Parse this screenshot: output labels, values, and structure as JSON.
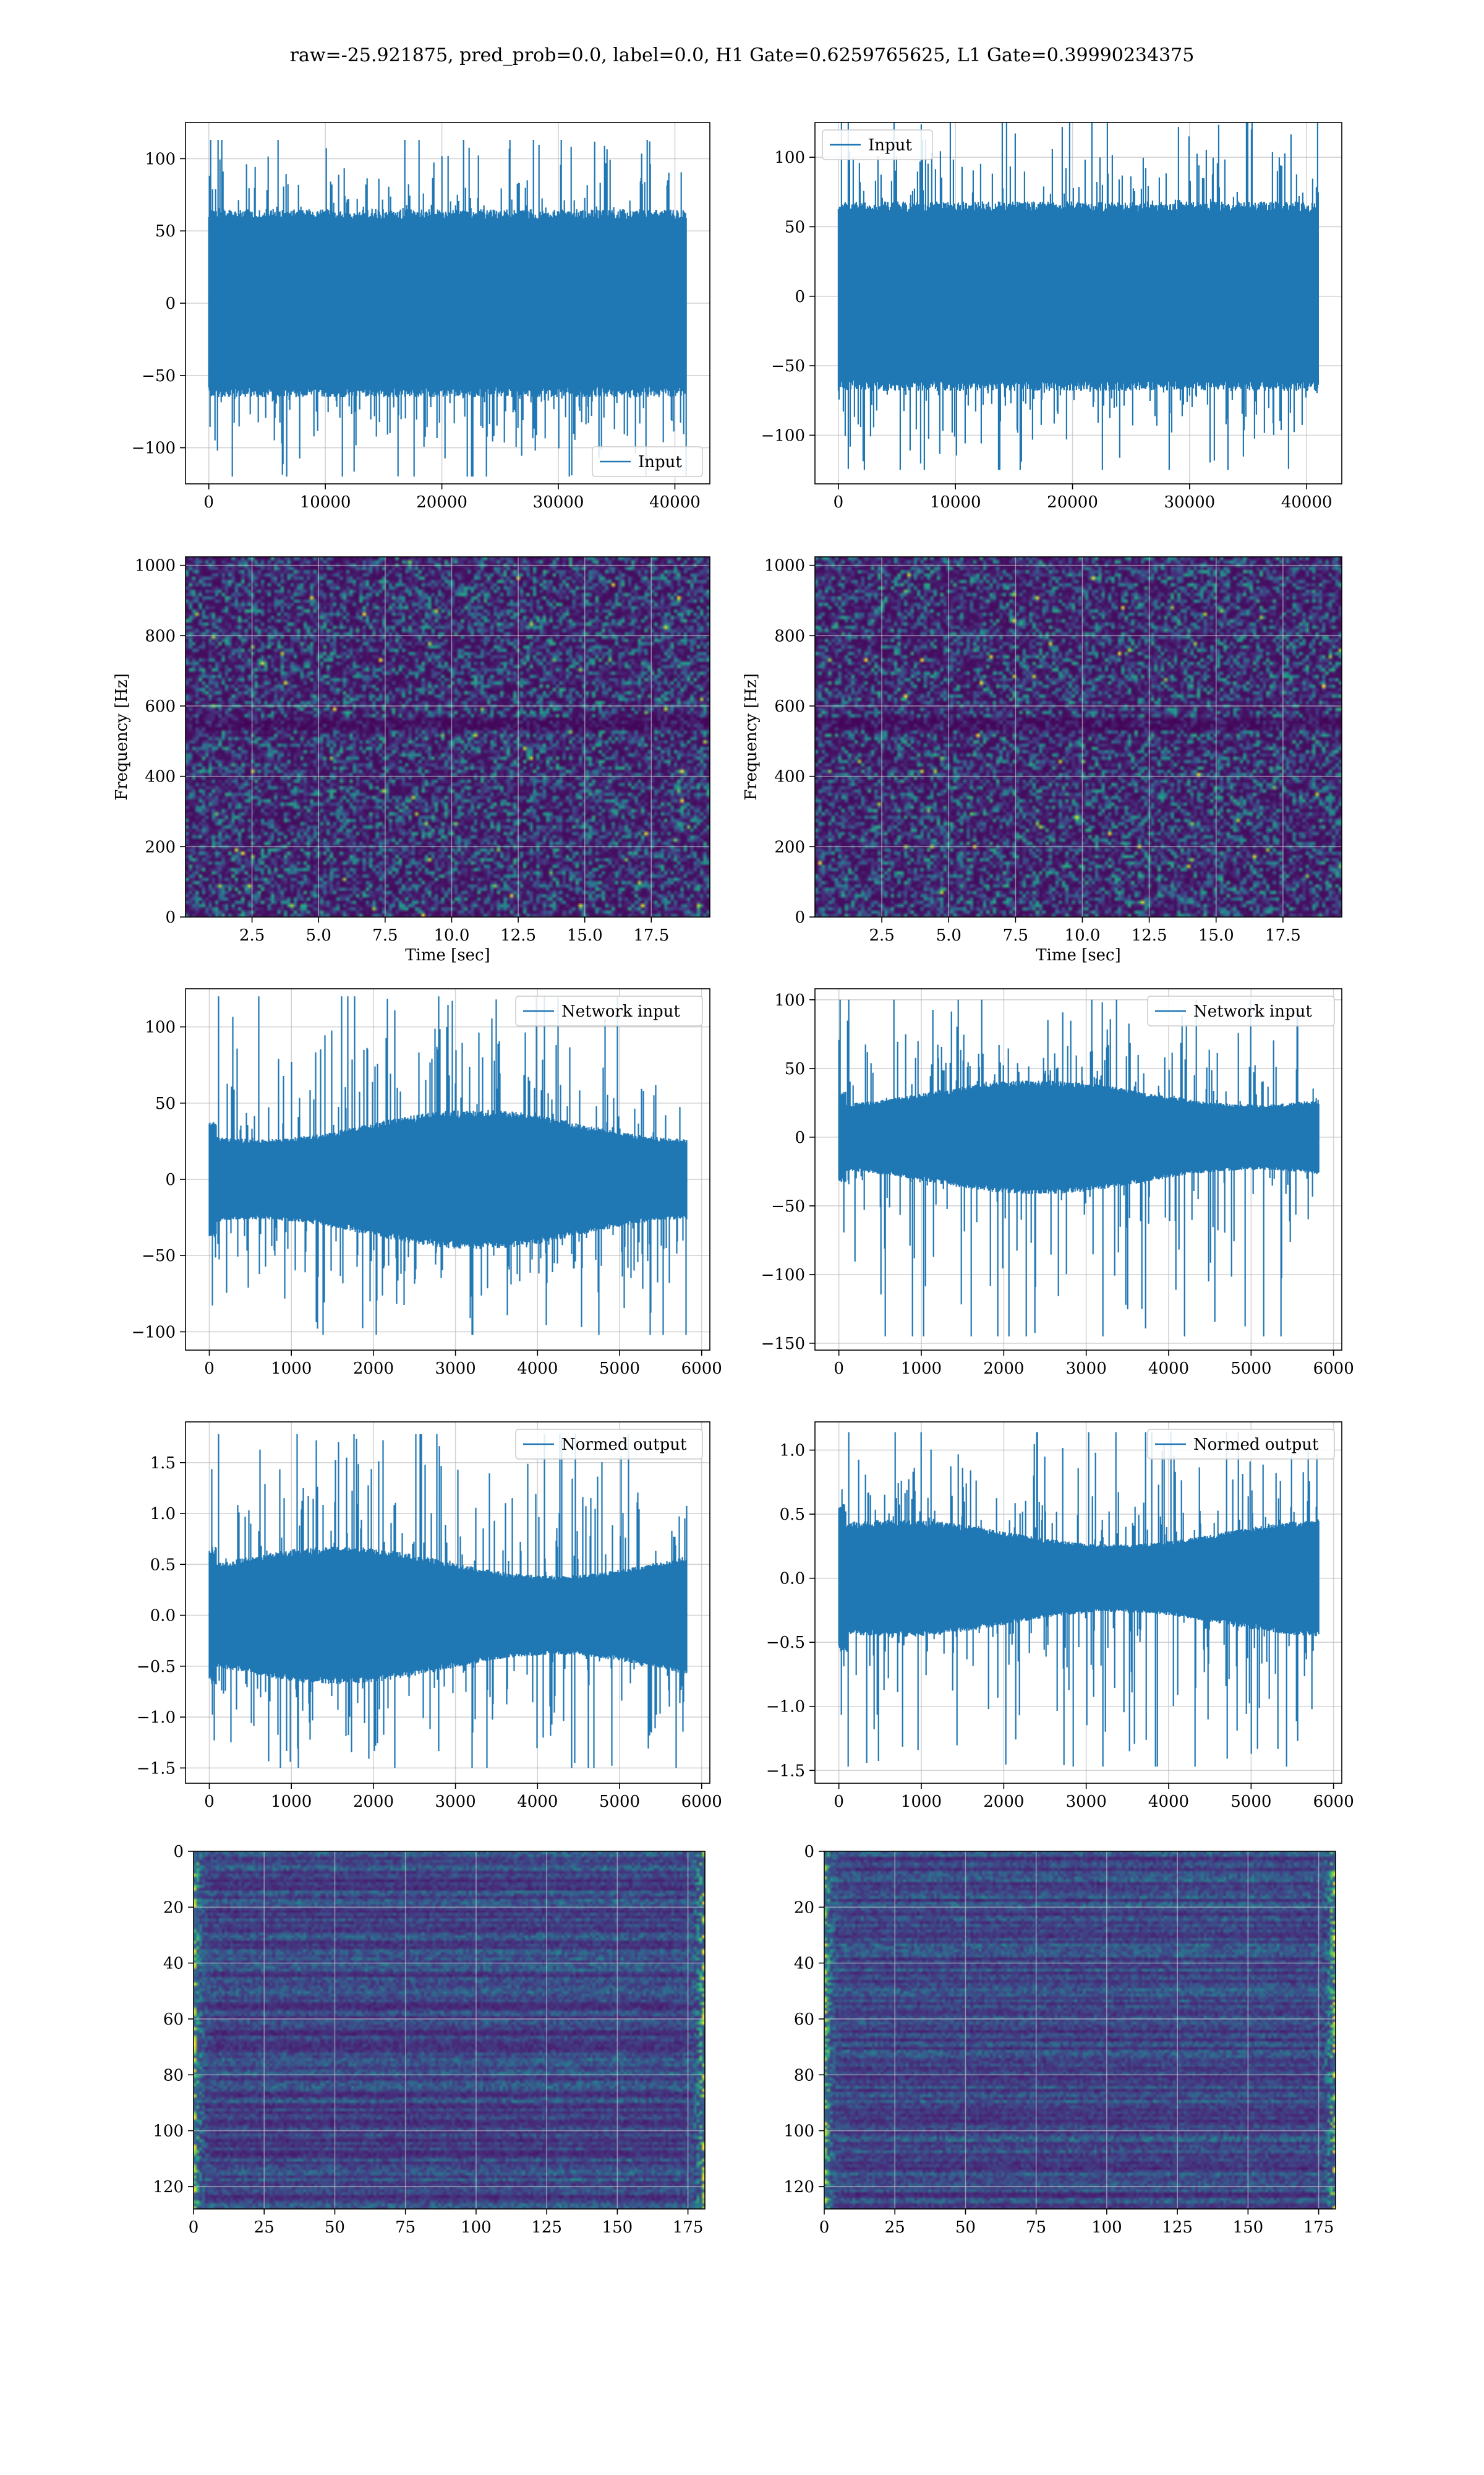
{
  "figure": {
    "title": "raw=-25.921875, pred_prob=0.0, label=0.0, H1 Gate=0.6259765625, L1 Gate=0.39990234375"
  },
  "colors": {
    "line": "#1f77b4",
    "grid": "#b0b0b0",
    "spec_low": "#440154",
    "spec_mid": "#21918c",
    "spec_high": "#fde725"
  },
  "chart_data": [
    {
      "id": "raw_h1",
      "type": "line",
      "legend": "Input",
      "legend_loc": "lower right",
      "xlim": [
        -2000,
        43000
      ],
      "ylim": [
        -125,
        125
      ],
      "xticks": [
        0,
        10000,
        20000,
        30000,
        40000
      ],
      "yticks": [
        -100,
        -50,
        0,
        50,
        100
      ],
      "signal": {
        "n": 40960,
        "x_end": 40960,
        "band": 62,
        "max": 113,
        "min": -120,
        "shape": "flat"
      },
      "grid": true
    },
    {
      "id": "raw_l1",
      "type": "line",
      "legend": "Input",
      "legend_loc": "upper left",
      "xlim": [
        -2000,
        43000
      ],
      "ylim": [
        -135,
        125
      ],
      "xticks": [
        0,
        10000,
        20000,
        30000,
        40000
      ],
      "yticks": [
        -100,
        -50,
        0,
        50,
        100
      ],
      "signal": {
        "n": 40960,
        "x_end": 40960,
        "band": 65,
        "max": 125,
        "min": -125,
        "shape": "flat"
      },
      "grid": true
    },
    {
      "id": "spec_h1",
      "type": "heatmap",
      "xlabel": "Time [sec]",
      "ylabel": "Frequency [Hz]",
      "xlim": [
        0,
        19.7
      ],
      "ylim": [
        0,
        1024
      ],
      "xticks": [
        2.5,
        5.0,
        7.5,
        10.0,
        12.5,
        15.0,
        17.5
      ],
      "yticks": [
        0,
        200,
        400,
        600,
        800,
        1000
      ],
      "grid": true
    },
    {
      "id": "spec_l1",
      "type": "heatmap",
      "xlabel": "Time [sec]",
      "ylabel": "Frequency [Hz]",
      "xlim": [
        0,
        19.7
      ],
      "ylim": [
        0,
        1024
      ],
      "xticks": [
        2.5,
        5.0,
        7.5,
        10.0,
        12.5,
        15.0,
        17.5
      ],
      "yticks": [
        0,
        200,
        400,
        600,
        800,
        1000
      ],
      "grid": true
    },
    {
      "id": "net_h1",
      "type": "line",
      "legend": "Network input",
      "legend_loc": "upper right",
      "xlim": [
        -290,
        6100
      ],
      "ylim": [
        -112,
        125
      ],
      "xticks": [
        0,
        1000,
        2000,
        3000,
        4000,
        5000,
        6000
      ],
      "yticks": [
        -100,
        -50,
        0,
        50,
        100
      ],
      "signal": {
        "n": 5820,
        "x_end": 5820,
        "band": 42,
        "max": 120,
        "min": -102,
        "shape": "taper"
      },
      "grid": true
    },
    {
      "id": "net_l1",
      "type": "line",
      "legend": "Network input",
      "legend_loc": "upper right",
      "xlim": [
        -290,
        6100
      ],
      "ylim": [
        -155,
        108
      ],
      "xticks": [
        0,
        1000,
        2000,
        3000,
        4000,
        5000,
        6000
      ],
      "yticks": [
        -150,
        -100,
        -50,
        0,
        50,
        100
      ],
      "signal": {
        "n": 5820,
        "x_end": 5820,
        "band": 38,
        "max": 100,
        "min": -145,
        "shape": "taper"
      },
      "grid": true
    },
    {
      "id": "norm_h1",
      "type": "line",
      "legend": "Normed output",
      "legend_loc": "upper right",
      "xlim": [
        -290,
        6100
      ],
      "ylim": [
        -1.65,
        1.9
      ],
      "xticks": [
        0,
        1000,
        2000,
        3000,
        4000,
        5000,
        6000
      ],
      "yticks": [
        -1.5,
        -1.0,
        -0.5,
        0.0,
        0.5,
        1.0,
        1.5
      ],
      "signal": {
        "n": 5820,
        "x_end": 5820,
        "band": 0.62,
        "max": 1.78,
        "min": -1.5,
        "shape": "taper"
      },
      "grid": true
    },
    {
      "id": "norm_l1",
      "type": "line",
      "legend": "Normed output",
      "legend_loc": "upper right",
      "xlim": [
        -290,
        6100
      ],
      "ylim": [
        -1.6,
        1.22
      ],
      "xticks": [
        0,
        1000,
        2000,
        3000,
        4000,
        5000,
        6000
      ],
      "yticks": [
        -1.5,
        -1.0,
        -0.5,
        0.0,
        0.5,
        1.0
      ],
      "signal": {
        "n": 5820,
        "x_end": 5820,
        "band": 0.42,
        "max": 1.14,
        "min": -1.47,
        "shape": "taper"
      },
      "grid": true
    },
    {
      "id": "feat_h1",
      "type": "heatmap",
      "xlim": [
        0,
        181
      ],
      "ylim": [
        128,
        0
      ],
      "xticks": [
        0,
        25,
        50,
        75,
        100,
        125,
        150,
        175
      ],
      "yticks": [
        0,
        20,
        40,
        60,
        80,
        100,
        120
      ],
      "grid": true
    },
    {
      "id": "feat_l1",
      "type": "heatmap",
      "xlim": [
        0,
        181
      ],
      "ylim": [
        128,
        0
      ],
      "xticks": [
        0,
        25,
        50,
        75,
        100,
        125,
        150,
        175
      ],
      "yticks": [
        0,
        20,
        40,
        60,
        80,
        100,
        120
      ],
      "grid": true
    }
  ]
}
